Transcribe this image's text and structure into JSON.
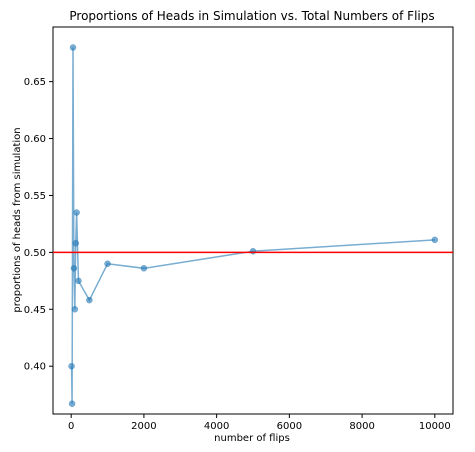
{
  "chart_data": {
    "type": "line",
    "title": "Proportions of Heads in Simulation vs. Total Numbers of Flips",
    "xlabel": "number of flips",
    "ylabel": "proportions of heads from simulation",
    "xlim": [
      -500,
      10500
    ],
    "ylim": [
      0.358,
      0.698
    ],
    "xticks": [
      0,
      2000,
      4000,
      6000,
      8000,
      10000
    ],
    "yticks": [
      0.4,
      0.45,
      0.5,
      0.55,
      0.6,
      0.65
    ],
    "xtick_labels": [
      "0",
      "2000",
      "4000",
      "6000",
      "8000",
      "10000"
    ],
    "ytick_labels": [
      "0.40",
      "0.45",
      "0.50",
      "0.55",
      "0.60",
      "0.65"
    ],
    "grid": false,
    "series": [
      {
        "x": [
          10,
          25,
          50,
          75,
          100,
          125,
          150,
          200,
          500,
          1000,
          2000,
          5000,
          10000
        ],
        "y": [
          0.4,
          0.367,
          0.68,
          0.486,
          0.45,
          0.508,
          0.535,
          0.475,
          0.458,
          0.49,
          0.486,
          0.501,
          0.511
        ],
        "color": "#1f77b4",
        "marker": "circle"
      }
    ],
    "reference_line": {
      "y": 0.5,
      "color": "#ff0000",
      "orientation": "horizontal"
    }
  }
}
